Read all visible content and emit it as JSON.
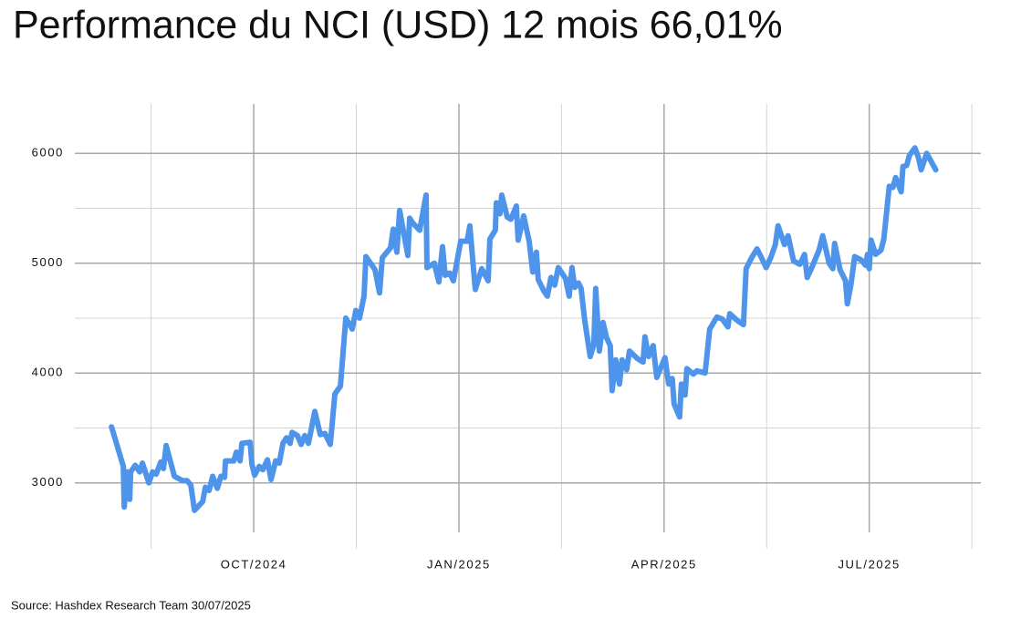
{
  "chart_data": {
    "type": "line",
    "title": "Performance du NCI (USD) 12 mois 66,01%",
    "source": "Source: Hashdex Research Team 30/07/2025",
    "xlim": [
      2024.532,
      2025.636
    ],
    "xticks": [
      {
        "value": 2024.75,
        "label": "OCT/2024"
      },
      {
        "value": 2025.0,
        "label": "JAN/2025"
      },
      {
        "value": 2025.25,
        "label": "APR/2025"
      },
      {
        "value": 2025.5,
        "label": "JUL/2025"
      }
    ],
    "xminorticks": [
      2024.625,
      2024.875,
      2025.125,
      2025.375,
      2025.625
    ],
    "ylim": [
      2400,
      6450
    ],
    "yticks": [
      3000,
      4000,
      5000,
      6000
    ],
    "yminorticks": [
      3500,
      4500,
      5500
    ],
    "grid": true,
    "series": [
      {
        "name": "NCI",
        "color": "#4d94ea",
        "x": [
          2024.5767,
          2024.5911,
          2024.5922,
          2024.5956,
          2024.5989,
          2024.6,
          2024.6056,
          2024.6111,
          2024.6144,
          2024.6222,
          2024.6267,
          2024.6311,
          2024.6367,
          2024.64,
          2024.6433,
          2024.6533,
          2024.6633,
          2024.6689,
          2024.6733,
          2024.6778,
          2024.6878,
          2024.6911,
          2024.6956,
          2024.7,
          2024.7056,
          2024.71,
          2024.7144,
          2024.7156,
          2024.7256,
          2024.7289,
          2024.7333,
          2024.7356,
          2024.7456,
          2024.7478,
          2024.7511,
          2024.7567,
          2024.7611,
          2024.7667,
          2024.7711,
          2024.7767,
          2024.7811,
          2024.7856,
          2024.79,
          2024.7944,
          2024.7967,
          2024.8033,
          2024.8078,
          2024.8122,
          2024.8167,
          2024.8244,
          2024.8311,
          2024.8367,
          2024.8433,
          2024.8489,
          2024.8556,
          2024.8622,
          2024.87,
          2024.8744,
          2024.8789,
          2024.8844,
          2024.8867,
          2024.8978,
          2024.9033,
          2024.9067,
          2024.9167,
          2024.92,
          2024.9244,
          2024.9278,
          2024.9378,
          2024.94,
          2024.9433,
          2024.9522,
          2024.96,
          2024.9611,
          2024.97,
          2024.9756,
          2024.98,
          2024.9833,
          2024.9889,
          2024.9933,
          2025.0022,
          2025.01,
          2025.0133,
          2025.02,
          2025.0278,
          2025.0356,
          2025.0378,
          2025.0444,
          2025.0456,
          2025.05,
          2025.0522,
          2025.0589,
          2025.0633,
          2025.07,
          2025.0722,
          2025.0789,
          2025.0856,
          2025.09,
          2025.0944,
          2025.0967,
          2025.1033,
          2025.1078,
          2025.1122,
          2025.1167,
          2025.1211,
          2025.13,
          2025.1344,
          2025.1378,
          2025.1411,
          2025.1456,
          2025.1489,
          2025.1533,
          2025.16,
          2025.1644,
          2025.1667,
          2025.1711,
          2025.1756,
          2025.18,
          2025.1844,
          2025.1867,
          2025.1911,
          2025.1956,
          2025.1989,
          2025.2044,
          2025.2078,
          2025.2178,
          2025.2244,
          2025.2267,
          2025.2311,
          2025.2367,
          2025.2411,
          2025.2511,
          2025.2556,
          2025.26,
          2025.2622,
          2025.2689,
          2025.2711,
          2025.2756,
          2025.2778,
          2025.2856,
          2025.29,
          2025.3,
          2025.3056,
          2025.3144,
          2025.3211,
          2025.3278,
          2025.33,
          2025.3389,
          2025.3467,
          2025.35,
          2025.3567,
          2025.3633,
          2025.37,
          2025.3744,
          2025.38,
          2025.3856,
          2025.3889,
          2025.3967,
          2025.4011,
          2025.4078,
          2025.4156,
          2025.4211,
          2025.4244,
          2025.43,
          2025.4389,
          2025.4433,
          2025.4511,
          2025.4556,
          2025.4578,
          2025.4644,
          2025.4711,
          2025.4733,
          2025.4778,
          2025.4822,
          2025.49,
          2025.4956,
          2025.4978,
          2025.5,
          2025.5022,
          2025.5078,
          2025.5144,
          2025.5178,
          2025.5244,
          2025.5289,
          2025.5322,
          2025.5389,
          2025.5411,
          2025.5456,
          2025.5489,
          2025.5556,
          2025.56,
          2025.5633,
          2025.57,
          2025.5811
        ],
        "values": [
          3510,
          3150,
          2780,
          3100,
          2850,
          3100,
          3160,
          3100,
          3180,
          3000,
          3100,
          3080,
          3190,
          3130,
          3340,
          3060,
          3020,
          3020,
          2980,
          2750,
          2830,
          2960,
          2930,
          3060,
          2950,
          3060,
          3050,
          3200,
          3200,
          3280,
          3200,
          3360,
          3370,
          3170,
          3070,
          3150,
          3120,
          3210,
          3030,
          3200,
          3180,
          3360,
          3410,
          3360,
          3460,
          3430,
          3350,
          3430,
          3360,
          3650,
          3440,
          3450,
          3350,
          3810,
          3880,
          4500,
          4400,
          4570,
          4500,
          4700,
          5060,
          4940,
          4730,
          5050,
          5140,
          5310,
          5100,
          5480,
          5070,
          5410,
          5370,
          5300,
          5620,
          4960,
          5000,
          4830,
          5150,
          4890,
          4910,
          4840,
          5200,
          5200,
          5340,
          4760,
          4950,
          4840,
          5220,
          5300,
          5550,
          5450,
          5620,
          5420,
          5400,
          5520,
          5210,
          5430,
          5200,
          4920,
          5100,
          4850,
          4750,
          4700,
          4870,
          4800,
          4960,
          4860,
          4700,
          4960,
          4780,
          4820,
          4770,
          4480,
          4150,
          4260,
          4770,
          4200,
          4460,
          4320,
          4250,
          3840,
          4120,
          3900,
          4120,
          4030,
          4200,
          4130,
          4100,
          4330,
          4150,
          4250,
          3960,
          4140,
          3900,
          3950,
          3720,
          3600,
          3900,
          3800,
          4040,
          3990,
          4020,
          4000,
          4400,
          4510,
          4490,
          4420,
          4540,
          4480,
          4440,
          4950,
          5050,
          5130,
          5030,
          4960,
          5050,
          5170,
          5340,
          5170,
          5250,
          5020,
          4990,
          5080,
          4870,
          4960,
          5120,
          5250,
          5000,
          4950,
          5180,
          4940,
          4840,
          4630,
          4810,
          5060,
          5030,
          4980,
          5080,
          4950,
          5210,
          5080,
          5120,
          5220,
          5700,
          5690,
          5780,
          5650,
          5880,
          5890,
          5980,
          6050,
          5960,
          5850,
          6000,
          5850
        ]
      }
    ]
  }
}
